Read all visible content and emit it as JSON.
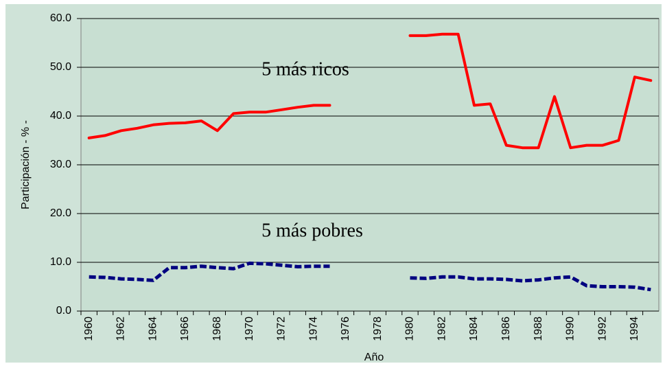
{
  "chart_data": {
    "type": "line",
    "y_label": "Participación - % -",
    "x_label": "Año",
    "annotations": [
      "5 más ricos",
      "5 más pobres"
    ],
    "categories": [
      "1960",
      null,
      "1962",
      null,
      "1964",
      null,
      "1966",
      null,
      "1968",
      null,
      "1970",
      null,
      "1972",
      null,
      "1974",
      null,
      "1976",
      null,
      "1978",
      null,
      "1980",
      null,
      "1982",
      null,
      "1984",
      null,
      "1986",
      null,
      "1988",
      null,
      "1990",
      null,
      "1992",
      null,
      "1994",
      null
    ],
    "series": [
      {
        "name": "5 más ricos",
        "color": "#ff0000",
        "dash": false,
        "values": [
          35.5,
          36,
          37,
          37.5,
          38.2,
          38.5,
          38.6,
          39,
          37,
          40.5,
          40.8,
          40.8,
          41.3,
          41.8,
          42.2,
          42.2,
          null,
          null,
          null,
          null,
          56.5,
          56.5,
          56.8,
          56.8,
          42.2,
          42.5,
          34,
          33.5,
          33.5,
          44,
          33.5,
          34,
          34,
          35,
          48,
          47.3
        ]
      },
      {
        "name": "5 más pobres",
        "color": "#000080",
        "dash": true,
        "values": [
          7,
          6.9,
          6.6,
          6.5,
          6.3,
          8.9,
          8.9,
          9.2,
          8.9,
          8.7,
          9.8,
          9.7,
          9.4,
          9.1,
          9.2,
          9.2,
          null,
          null,
          null,
          null,
          6.8,
          6.7,
          7,
          7,
          6.6,
          6.6,
          6.5,
          6.2,
          6.4,
          6.8,
          7,
          5.2,
          5,
          5,
          4.9,
          4.4
        ]
      }
    ],
    "ylim": [
      0,
      60
    ],
    "yticks": [
      {
        "value": 0,
        "label": "0.0"
      },
      {
        "value": 10,
        "label": "10.0"
      },
      {
        "value": 20,
        "label": "20.0"
      },
      {
        "value": 30,
        "label": "30.0"
      },
      {
        "value": 40,
        "label": "40.0"
      },
      {
        "value": 50,
        "label": "50.0"
      },
      {
        "value": 60,
        "label": "60.0"
      }
    ],
    "grid": true
  }
}
